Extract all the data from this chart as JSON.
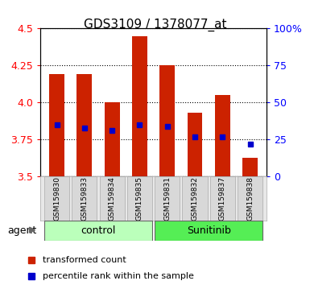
{
  "title": "GDS3109 / 1378077_at",
  "samples": [
    "GSM159830",
    "GSM159833",
    "GSM159834",
    "GSM159835",
    "GSM159831",
    "GSM159832",
    "GSM159837",
    "GSM159838"
  ],
  "bar_bottoms": [
    3.5,
    3.5,
    3.5,
    3.5,
    3.5,
    3.5,
    3.5,
    3.5
  ],
  "bar_tops": [
    4.19,
    4.19,
    4.0,
    4.45,
    4.25,
    3.93,
    4.05,
    3.63
  ],
  "percentile_values": [
    3.85,
    3.83,
    3.81,
    3.85,
    3.84,
    3.77,
    3.77,
    3.72
  ],
  "ylim_left": [
    3.5,
    4.5
  ],
  "ylim_right": [
    0,
    100
  ],
  "yticks_left": [
    3.5,
    3.75,
    4.0,
    4.25,
    4.5
  ],
  "yticks_right": [
    0,
    25,
    50,
    75,
    100
  ],
  "ytick_labels_right": [
    "0",
    "25",
    "50",
    "75",
    "100%"
  ],
  "groups": [
    {
      "label": "control",
      "start": 0,
      "end": 3,
      "color": "#bbffbb"
    },
    {
      "label": "Sunitinib",
      "start": 4,
      "end": 7,
      "color": "#55ee55"
    }
  ],
  "bar_color": "#cc2200",
  "percentile_color": "#0000cc",
  "grid_color": "#000000",
  "plot_bg": "#ffffff",
  "legend_items": [
    {
      "color": "#cc2200",
      "label": "transformed count"
    },
    {
      "color": "#0000cc",
      "label": "percentile rank within the sample"
    }
  ]
}
